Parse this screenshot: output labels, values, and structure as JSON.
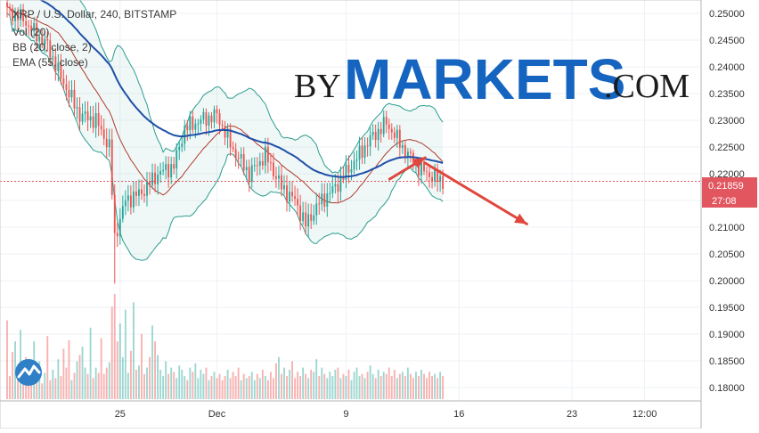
{
  "legend": {
    "symbol": "XRP / U.S. Dollar, 240, BITSTAMP",
    "volume": "Vol (20)",
    "bollinger": "BB (20, close, 2)",
    "ema": "EMA (55, close)"
  },
  "watermark": {
    "prefix": "BY",
    "brand": "MARKETS",
    "suffix": ".COM"
  },
  "price_label": {
    "value": "0.21859",
    "countdown": "27:08"
  },
  "icon": "tradingview-logo-icon",
  "colors": {
    "up": "#26a69a",
    "down": "#ef5350",
    "ema": "#1f4fa8",
    "bb_band": "#2a9d8f",
    "bb_basis": "#b03a2e",
    "arrow": "#e0463d",
    "price_line": "#e05561"
  },
  "chart_data": {
    "type": "candlestick",
    "title": "XRP / U.S. Dollar, 240, BITSTAMP",
    "y_ticks": [
      "0.25000",
      "0.24500",
      "0.24000",
      "0.23500",
      "0.23000",
      "0.22500",
      "0.22000",
      "0.21500",
      "0.21000",
      "0.20500",
      "0.20000",
      "0.19500",
      "0.19000",
      "0.18500",
      "0.18000"
    ],
    "x_ticks": [
      {
        "label": "25",
        "day": 25
      },
      {
        "label": "Dec",
        "day": 31
      },
      {
        "label": "9",
        "day": 39
      },
      {
        "label": "16",
        "day": 46
      },
      {
        "label": "23",
        "day": 53
      },
      {
        "label": "12:00",
        "day": 57.5
      }
    ],
    "ylim": [
      0.1775,
      0.2525
    ],
    "xlim": [
      18.0,
      61.0
    ],
    "candles_per_day": 6,
    "first_candle_day": 18.0,
    "close_anchors": [
      [
        0,
        0.2505
      ],
      [
        6,
        0.249
      ],
      [
        9,
        0.247
      ],
      [
        15,
        0.244
      ],
      [
        20,
        0.238
      ],
      [
        27,
        0.231
      ],
      [
        33,
        0.23
      ],
      [
        38,
        0.225
      ],
      [
        40,
        0.208
      ],
      [
        44,
        0.215
      ],
      [
        50,
        0.2165
      ],
      [
        56,
        0.22
      ],
      [
        62,
        0.2215
      ],
      [
        66,
        0.2285
      ],
      [
        72,
        0.23
      ],
      [
        78,
        0.231
      ],
      [
        84,
        0.2245
      ],
      [
        90,
        0.22
      ],
      [
        96,
        0.2235
      ],
      [
        102,
        0.2175
      ],
      [
        107,
        0.215
      ],
      [
        111,
        0.2105
      ],
      [
        116,
        0.2145
      ],
      [
        122,
        0.2175
      ],
      [
        128,
        0.2215
      ],
      [
        135,
        0.2265
      ],
      [
        141,
        0.2295
      ],
      [
        147,
        0.225
      ],
      [
        152,
        0.2215
      ],
      [
        158,
        0.2195
      ],
      [
        162,
        0.2186
      ]
    ],
    "volume_axis_max": 1.0,
    "volumes": [
      0.75,
      0.22,
      0.45,
      0.55,
      0.25,
      0.66,
      0.28,
      0.4,
      0.18,
      0.3,
      0.55,
      0.2,
      0.36,
      0.15,
      0.25,
      0.6,
      0.18,
      0.28,
      0.2,
      0.38,
      0.22,
      0.48,
      0.3,
      0.56,
      0.18,
      0.25,
      0.36,
      0.42,
      0.5,
      0.3,
      0.24,
      0.68,
      0.2,
      0.3,
      0.25,
      0.58,
      0.24,
      0.3,
      0.35,
      0.88,
      1.0,
      0.55,
      0.72,
      0.4,
      0.85,
      0.25,
      0.46,
      0.92,
      0.28,
      0.32,
      0.62,
      0.24,
      0.3,
      0.4,
      0.7,
      0.55,
      0.42,
      0.28,
      0.22,
      0.36,
      0.24,
      0.3,
      0.26,
      0.2,
      0.32,
      0.28,
      0.22,
      0.18,
      0.3,
      0.26,
      0.34,
      0.2,
      0.28,
      0.24,
      0.3,
      0.18,
      0.22,
      0.26,
      0.2,
      0.24,
      0.18,
      0.22,
      0.28,
      0.2,
      0.26,
      0.22,
      0.3,
      0.18,
      0.24,
      0.2,
      0.22,
      0.26,
      0.18,
      0.24,
      0.2,
      0.28,
      0.22,
      0.18,
      0.26,
      0.2,
      0.34,
      0.4,
      0.24,
      0.3,
      0.22,
      0.28,
      0.36,
      0.2,
      0.26,
      0.22,
      0.3,
      0.24,
      0.2,
      0.28,
      0.26,
      0.38,
      0.22,
      0.3,
      0.24,
      0.2,
      0.26,
      0.22,
      0.28,
      0.3,
      0.2,
      0.24,
      0.22,
      0.28,
      0.18,
      0.26,
      0.3,
      0.22,
      0.24,
      0.2,
      0.26,
      0.32,
      0.24,
      0.2,
      0.28,
      0.22,
      0.26,
      0.24,
      0.3,
      0.22,
      0.28,
      0.2,
      0.24,
      0.26,
      0.22,
      0.3,
      0.24,
      0.2,
      0.26,
      0.22,
      0.28,
      0.24,
      0.2,
      0.26,
      0.22,
      0.24,
      0.2,
      0.26,
      0.22
    ],
    "current_price": 0.21859,
    "arrows": [
      {
        "from": [
          41.7,
          0.219
        ],
        "to": [
          43.9,
          0.223
        ]
      },
      {
        "from": [
          43.9,
          0.222
        ],
        "to": [
          50.2,
          0.2106
        ]
      }
    ]
  }
}
